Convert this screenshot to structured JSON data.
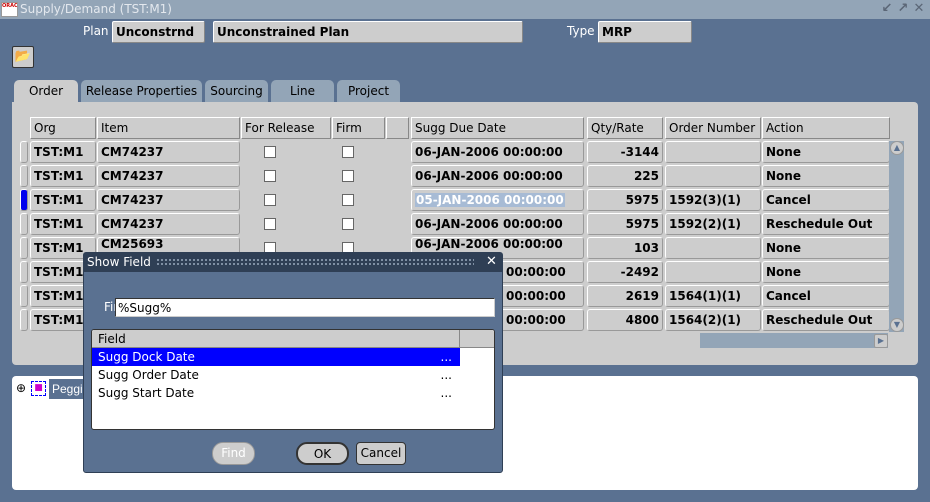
{
  "window": {
    "title": "Supply/Demand (TST:M1)",
    "logo_text": "ORACLE Applications",
    "controls": [
      "minimize",
      "maximize",
      "close"
    ]
  },
  "header": {
    "plan_label": "Plan",
    "plan_code": "Unconstrnd",
    "plan_desc": "Unconstrained Plan",
    "type_label": "Type",
    "type_value": "MRP"
  },
  "toolbar": {
    "open_icon": "open-folder-icon"
  },
  "tabs": [
    {
      "label": "Order",
      "active": true
    },
    {
      "label": "Release Properties"
    },
    {
      "label": "Sourcing"
    },
    {
      "label": "Line"
    },
    {
      "label": "Project"
    }
  ],
  "table": {
    "columns": [
      "Org",
      "Item",
      "For Release",
      "Firm",
      "",
      "Sugg Due Date",
      "Qty/Rate",
      "Order Number",
      "Action"
    ],
    "rows": [
      {
        "org": "TST:M1",
        "item": "CM74237",
        "for_release": false,
        "firm": false,
        "due": "06-JAN-2006 00:00:00",
        "qty": "-3144",
        "order": "",
        "action": "None"
      },
      {
        "org": "TST:M1",
        "item": "CM74237",
        "for_release": false,
        "firm": false,
        "due": "06-JAN-2006 00:00:00",
        "qty": "225",
        "order": "",
        "action": "None"
      },
      {
        "org": "TST:M1",
        "item": "CM74237",
        "for_release": false,
        "firm": false,
        "due": "05-JAN-2006 00:00:00",
        "qty": "5975",
        "order": "1592(3)(1)",
        "action": "Cancel",
        "current": true
      },
      {
        "org": "TST:M1",
        "item": "CM74237",
        "for_release": false,
        "firm": false,
        "due": "06-JAN-2006 00:00:00",
        "qty": "5975",
        "order": "1592(2)(1)",
        "action": "Reschedule Out"
      },
      {
        "org": "TST:M1",
        "item": "CM25693",
        "for_release": false,
        "firm": false,
        "due": "06-JAN-2006 00:00:00",
        "qty": "103",
        "order": "",
        "action": "None"
      },
      {
        "org": "TST:M1",
        "item": "",
        "due": "00:00:00",
        "qty": "-2492",
        "order": "",
        "action": "None"
      },
      {
        "org": "TST:M1",
        "item": "",
        "due": "00:00:00",
        "qty": "2619",
        "order": "1564(1)(1)",
        "action": "Cancel"
      },
      {
        "org": "TST:M1",
        "item": "",
        "due": "00:00:00",
        "qty": "4800",
        "order": "1564(2)(1)",
        "action": "Reschedule Out"
      }
    ]
  },
  "lower": {
    "tree_item": "Peggi"
  },
  "dialog": {
    "title": "Show Field",
    "find_label": "Find",
    "find_value": "%Sugg%",
    "list_header": "Field",
    "fields": [
      {
        "label": "Sugg Dock Date",
        "selected": true
      },
      {
        "label": "Sugg Order Date"
      },
      {
        "label": "Sugg Start Date"
      }
    ],
    "ellipsis": "...",
    "buttons": {
      "find": "Find",
      "ok": "OK",
      "cancel": "Cancel"
    }
  },
  "colors": {
    "background": "#5a7191",
    "panel": "#cdcdcd",
    "selection": "#0000ff",
    "titlebar": "#93a5b7",
    "dialog_title": "#2f3f55"
  }
}
